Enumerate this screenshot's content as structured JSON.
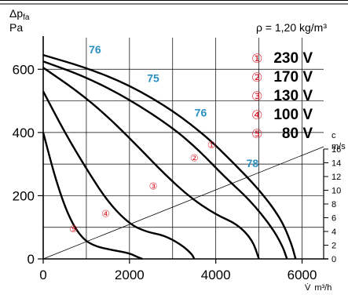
{
  "chart_data": {
    "type": "line",
    "ylabel_main": "Δp",
    "ylabel_sub": "fa",
    "yunit": "Pa",
    "density_label": "ρ = 1,20 kg/m³",
    "xlabel_symbol": "V̇",
    "xunit": "m³/h",
    "right_axis_label": "c",
    "right_axis_unit": "m/s",
    "xlim": [
      0,
      6500
    ],
    "ylim": [
      0,
      700
    ],
    "right_axis_lim": [
      0,
      16
    ],
    "x_ticks": [
      "0",
      "2000",
      "4000",
      "6000"
    ],
    "y_ticks": [
      "0",
      "200",
      "400",
      "600"
    ],
    "right_ticks": [
      "0",
      "2",
      "4",
      "6",
      "8",
      "10",
      "12",
      "14",
      "16"
    ],
    "series": [
      {
        "name": "230 V",
        "marker": "①",
        "x": [
          0,
          1000,
          2000,
          3000,
          3800,
          4400,
          5000,
          5500,
          5750,
          5850
        ],
        "y": [
          645,
          605,
          550,
          470,
          385,
          305,
          220,
          130,
          50,
          0
        ]
      },
      {
        "name": "170 V",
        "marker": "②",
        "x": [
          0,
          1000,
          2000,
          3000,
          3600,
          4200,
          4800,
          5300,
          5550,
          5650
        ],
        "y": [
          625,
          575,
          505,
          415,
          345,
          260,
          185,
          100,
          40,
          0
        ]
      },
      {
        "name": "130 V",
        "marker": "③",
        "x": [
          0,
          800,
          1500,
          2200,
          2800,
          3400,
          4000,
          4500,
          4850,
          5000
        ],
        "y": [
          605,
          530,
          450,
          355,
          270,
          195,
          140,
          110,
          60,
          0
        ]
      },
      {
        "name": "100 V",
        "marker": "④",
        "x": [
          0,
          500,
          1000,
          1500,
          2000,
          2400,
          2800,
          3200,
          3450,
          3500
        ],
        "y": [
          530,
          400,
          285,
          180,
          110,
          85,
          75,
          45,
          15,
          0
        ]
      },
      {
        "name": "80 V",
        "marker": "⑤",
        "x": [
          0,
          300,
          600,
          900,
          1200,
          1600,
          2000,
          2200,
          2300
        ],
        "y": [
          400,
          245,
          130,
          65,
          40,
          28,
          18,
          5,
          0
        ]
      }
    ],
    "efficiency_labels": [
      {
        "text": "76",
        "x": 1200,
        "y": 650
      },
      {
        "text": "75",
        "x": 2550,
        "y": 560
      },
      {
        "text": "76",
        "x": 3650,
        "y": 450
      },
      {
        "text": "78",
        "x": 4850,
        "y": 290
      }
    ],
    "system_line": {
      "x": [
        0,
        6500
      ],
      "y": [
        0,
        355
      ]
    }
  }
}
